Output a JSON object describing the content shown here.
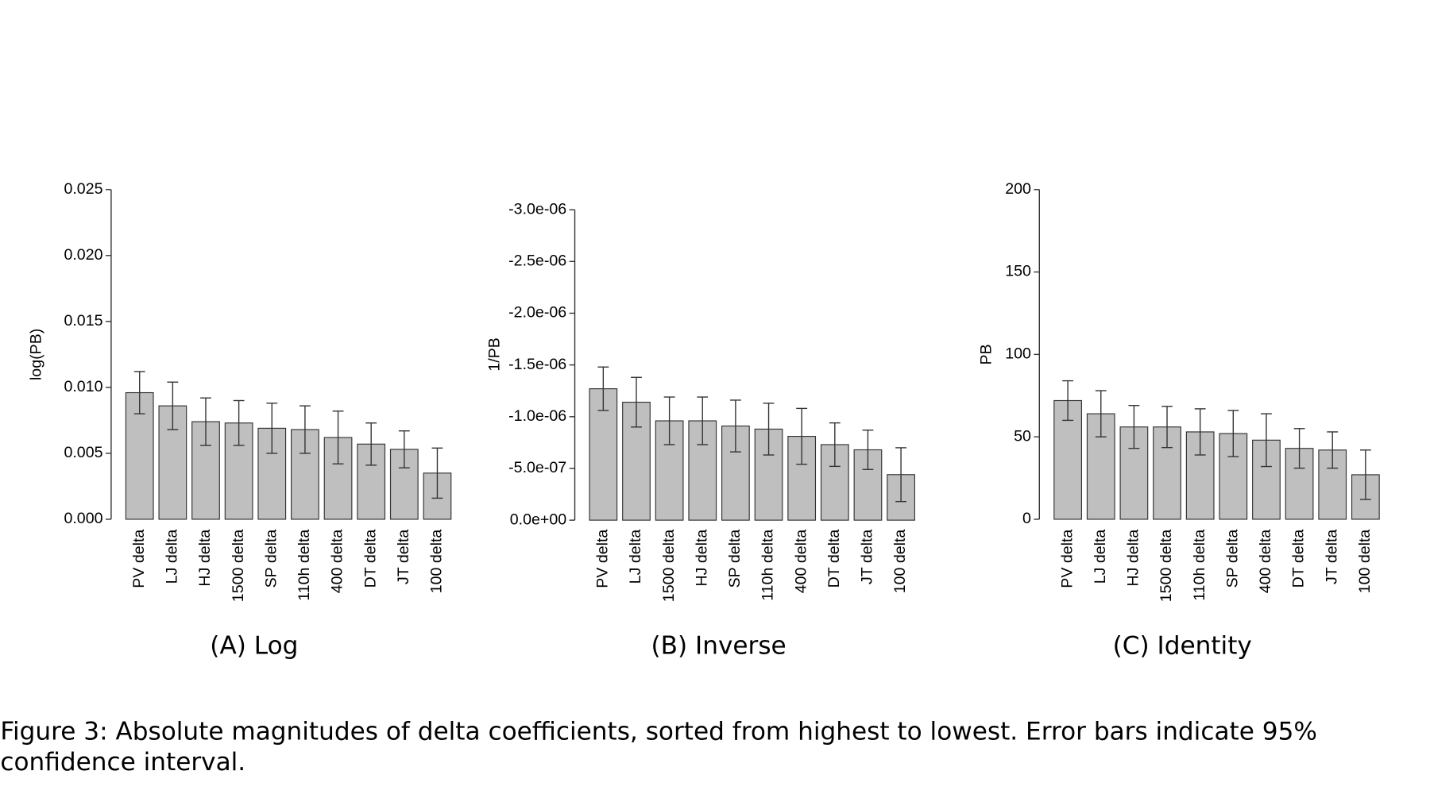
{
  "chart_data": [
    {
      "type": "bar",
      "label": "(A) Log",
      "ylabel": "log(PB)",
      "categories": [
        "PV delta",
        "LJ delta",
        "HJ delta",
        "1500 delta",
        "SP delta",
        "110h delta",
        "400 delta",
        "DT delta",
        "JT delta",
        "100 delta"
      ],
      "values": [
        0.0096,
        0.0086,
        0.0074,
        0.0073,
        0.0069,
        0.0068,
        0.0062,
        0.0057,
        0.0053,
        0.0035
      ],
      "errors": [
        0.0016,
        0.0018,
        0.0018,
        0.0017,
        0.0019,
        0.0018,
        0.002,
        0.0016,
        0.0014,
        0.0019
      ],
      "color": "#bfbfbf",
      "ylim": [
        0,
        0.025
      ],
      "yticks": [
        {
          "value": 0,
          "label": "0.000"
        },
        0.005,
        {
          "value": 0.01,
          "label": "0.010"
        },
        0.015,
        {
          "value": 0.02,
          "label": "0.020"
        },
        0.025
      ]
    },
    {
      "type": "bar",
      "label": "(B) Inverse",
      "ylabel": "1/PB",
      "categories": [
        "PV delta",
        "LJ delta",
        "1500 delta",
        "HJ delta",
        "SP delta",
        "110h delta",
        "400 delta",
        "DT delta",
        "JT delta",
        "100 delta"
      ],
      "values": [
        -1.27e-06,
        -1.14e-06,
        -9.6e-07,
        -9.6e-07,
        -9.1e-07,
        -8.8e-07,
        -8.1e-07,
        -7.3e-07,
        -6.8e-07,
        -4.4e-07
      ],
      "errors": [
        2.1e-07,
        2.4e-07,
        2.3e-07,
        2.3e-07,
        2.5e-07,
        2.5e-07,
        2.7e-07,
        2.1e-07,
        1.9e-07,
        2.6e-07
      ],
      "color": "#bfbfbf",
      "ylim": [
        0,
        -3e-06
      ],
      "yticks": [
        {
          "value": 0,
          "label": "0.0e+00"
        },
        {
          "value": -5e-07,
          "label": "-5.0e-07"
        },
        {
          "value": -1e-06,
          "label": "-1.0e-06"
        },
        {
          "value": -1.5e-06,
          "label": "-1.5e-06"
        },
        {
          "value": -2e-06,
          "label": "-2.0e-06"
        },
        {
          "value": -2.5e-06,
          "label": "-2.5e-06"
        },
        {
          "value": -3e-06,
          "label": "-3.0e-06"
        }
      ]
    },
    {
      "type": "bar",
      "label": "(C) Identity",
      "ylabel": "PB",
      "categories": [
        "PV delta",
        "LJ delta",
        "HJ delta",
        "1500 delta",
        "110h delta",
        "SP delta",
        "400 delta",
        "DT delta",
        "JT delta",
        "100 delta"
      ],
      "values": [
        72,
        64,
        56,
        56,
        53,
        52,
        48,
        43,
        42,
        27
      ],
      "errors": [
        12,
        14,
        13,
        12.5,
        14,
        14,
        16,
        12,
        11,
        15
      ],
      "color": "#bfbfbf",
      "ylim": [
        0,
        200
      ],
      "yticks": [
        0,
        50,
        100,
        150,
        200
      ]
    }
  ],
  "caption": [
    "Figure 3: Absolute magnitudes of delta coefficients, sorted from highest to lowest. Error bars indicate 95%",
    "confidence interval."
  ]
}
